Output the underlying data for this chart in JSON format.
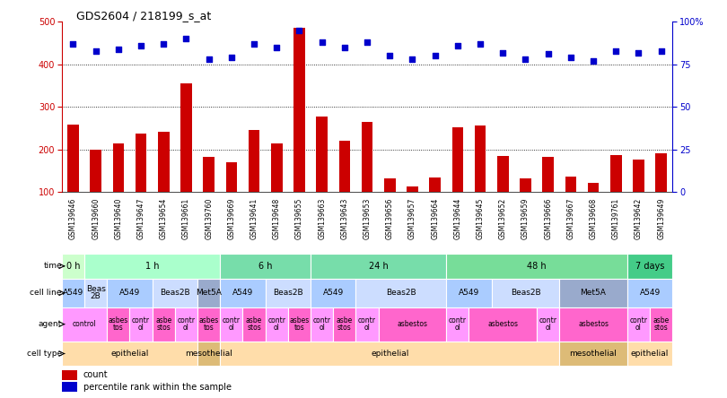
{
  "title": "GDS2604 / 218199_s_at",
  "gsm_labels": [
    "GSM139646",
    "GSM139660",
    "GSM139640",
    "GSM139647",
    "GSM139654",
    "GSM139661",
    "GSM139760",
    "GSM139669",
    "GSM139641",
    "GSM139648",
    "GSM139655",
    "GSM139663",
    "GSM139643",
    "GSM139653",
    "GSM139656",
    "GSM139657",
    "GSM139664",
    "GSM139644",
    "GSM139645",
    "GSM139652",
    "GSM139659",
    "GSM139666",
    "GSM139667",
    "GSM139668",
    "GSM139761",
    "GSM139642",
    "GSM139649"
  ],
  "bar_values": [
    258,
    200,
    215,
    238,
    241,
    356,
    182,
    169,
    245,
    215,
    487,
    277,
    220,
    264,
    132,
    113,
    134,
    251,
    257,
    185,
    132,
    182,
    135,
    121,
    187,
    175,
    190
  ],
  "dot_values": [
    87,
    83,
    84,
    86,
    87,
    90,
    78,
    79,
    87,
    85,
    95,
    88,
    85,
    88,
    80,
    78,
    80,
    86,
    87,
    82,
    78,
    81,
    79,
    77,
    83,
    82,
    83
  ],
  "bar_color": "#CC0000",
  "dot_color": "#0000CC",
  "ylim_left": [
    100,
    500
  ],
  "ylim_right": [
    0,
    100
  ],
  "yticks_left": [
    100,
    200,
    300,
    400,
    500
  ],
  "yticks_right": [
    0,
    25,
    50,
    75,
    100
  ],
  "yticklabels_right": [
    "0",
    "25",
    "50",
    "75",
    "100%"
  ],
  "grid_vals": [
    200,
    300,
    400
  ],
  "time_row": {
    "label": "time",
    "segments": [
      {
        "text": "0 h",
        "start": 0,
        "end": 1,
        "color": "#CCFFCC"
      },
      {
        "text": "1 h",
        "start": 1,
        "end": 7,
        "color": "#AAFFCC"
      },
      {
        "text": "6 h",
        "start": 7,
        "end": 11,
        "color": "#77DDAA"
      },
      {
        "text": "24 h",
        "start": 11,
        "end": 17,
        "color": "#77DDAA"
      },
      {
        "text": "48 h",
        "start": 17,
        "end": 25,
        "color": "#77DD99"
      },
      {
        "text": "7 days",
        "start": 25,
        "end": 27,
        "color": "#44CC88"
      }
    ]
  },
  "cellline_row": {
    "label": "cell line",
    "segments": [
      {
        "text": "A549",
        "start": 0,
        "end": 1,
        "color": "#AACCFF"
      },
      {
        "text": "Beas\n2B",
        "start": 1,
        "end": 2,
        "color": "#CCDDFF"
      },
      {
        "text": "A549",
        "start": 2,
        "end": 4,
        "color": "#AACCFF"
      },
      {
        "text": "Beas2B",
        "start": 4,
        "end": 6,
        "color": "#CCDDFF"
      },
      {
        "text": "Met5A",
        "start": 6,
        "end": 7,
        "color": "#99AACC"
      },
      {
        "text": "A549",
        "start": 7,
        "end": 9,
        "color": "#AACCFF"
      },
      {
        "text": "Beas2B",
        "start": 9,
        "end": 11,
        "color": "#CCDDFF"
      },
      {
        "text": "A549",
        "start": 11,
        "end": 13,
        "color": "#AACCFF"
      },
      {
        "text": "Beas2B",
        "start": 13,
        "end": 17,
        "color": "#CCDDFF"
      },
      {
        "text": "A549",
        "start": 17,
        "end": 19,
        "color": "#AACCFF"
      },
      {
        "text": "Beas2B",
        "start": 19,
        "end": 22,
        "color": "#CCDDFF"
      },
      {
        "text": "Met5A",
        "start": 22,
        "end": 25,
        "color": "#99AACC"
      },
      {
        "text": "A549",
        "start": 25,
        "end": 27,
        "color": "#AACCFF"
      }
    ]
  },
  "agent_segments": [
    {
      "text": "control",
      "start": 0,
      "end": 2,
      "color": "#FF99FF"
    },
    {
      "text": "asbes\ntos",
      "start": 2,
      "end": 3,
      "color": "#FF66CC"
    },
    {
      "text": "contr\nol",
      "start": 3,
      "end": 4,
      "color": "#FF99FF"
    },
    {
      "text": "asbe\nstos",
      "start": 4,
      "end": 5,
      "color": "#FF66CC"
    },
    {
      "text": "contr\nol",
      "start": 5,
      "end": 6,
      "color": "#FF99FF"
    },
    {
      "text": "asbes\ntos",
      "start": 6,
      "end": 7,
      "color": "#FF66CC"
    },
    {
      "text": "contr\nol",
      "start": 7,
      "end": 8,
      "color": "#FF99FF"
    },
    {
      "text": "asbe\nstos",
      "start": 8,
      "end": 9,
      "color": "#FF66CC"
    },
    {
      "text": "contr\nol",
      "start": 9,
      "end": 10,
      "color": "#FF99FF"
    },
    {
      "text": "asbes\ntos",
      "start": 10,
      "end": 11,
      "color": "#FF66CC"
    },
    {
      "text": "contr\nol",
      "start": 11,
      "end": 12,
      "color": "#FF99FF"
    },
    {
      "text": "asbe\nstos",
      "start": 12,
      "end": 13,
      "color": "#FF66CC"
    },
    {
      "text": "contr\nol",
      "start": 13,
      "end": 14,
      "color": "#FF99FF"
    },
    {
      "text": "asbestos",
      "start": 14,
      "end": 17,
      "color": "#FF66CC"
    },
    {
      "text": "contr\nol",
      "start": 17,
      "end": 18,
      "color": "#FF99FF"
    },
    {
      "text": "asbestos",
      "start": 18,
      "end": 21,
      "color": "#FF66CC"
    },
    {
      "text": "contr\nol",
      "start": 21,
      "end": 22,
      "color": "#FF99FF"
    },
    {
      "text": "asbestos",
      "start": 22,
      "end": 25,
      "color": "#FF66CC"
    },
    {
      "text": "contr\nol",
      "start": 25,
      "end": 26,
      "color": "#FF99FF"
    },
    {
      "text": "asbe\nstos",
      "start": 26,
      "end": 27,
      "color": "#FF66CC"
    }
  ],
  "celltype_row": {
    "label": "cell type",
    "segments": [
      {
        "text": "epithelial",
        "start": 0,
        "end": 6,
        "color": "#FFDDAA"
      },
      {
        "text": "mesothelial",
        "start": 6,
        "end": 7,
        "color": "#DDBB77"
      },
      {
        "text": "epithelial",
        "start": 7,
        "end": 22,
        "color": "#FFDDAA"
      },
      {
        "text": "mesothelial",
        "start": 22,
        "end": 25,
        "color": "#DDBB77"
      },
      {
        "text": "epithelial",
        "start": 25,
        "end": 27,
        "color": "#FFDDAA"
      }
    ]
  }
}
